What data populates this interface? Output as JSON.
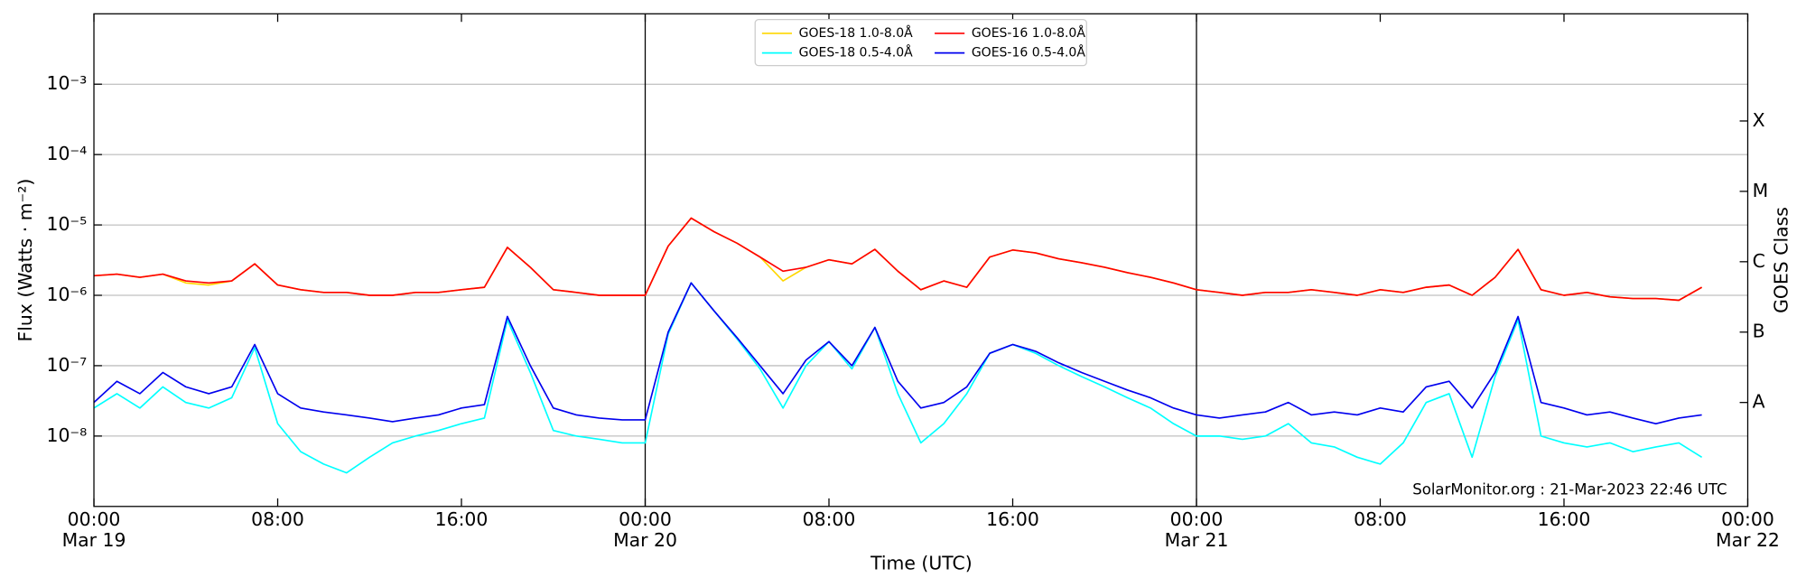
{
  "chart_data": {
    "type": "line",
    "xlabel": "Time (UTC)",
    "ylabel": "Flux (Watts · m⁻²)",
    "y2label": "GOES Class",
    "annotation": "SolarMonitor.org : 21-Mar-2023 22:46 UTC",
    "log_y": true,
    "grid": true,
    "legend": "upper center",
    "vlines": [
      24,
      48
    ],
    "xlim": [
      0,
      72
    ],
    "ylim": [
      1e-09,
      0.01
    ],
    "xticks": [
      {
        "value": 0,
        "label": "00:00\nMar 19"
      },
      {
        "value": 8,
        "label": "08:00"
      },
      {
        "value": 16,
        "label": "16:00"
      },
      {
        "value": 24,
        "label": "00:00\nMar 20"
      },
      {
        "value": 32,
        "label": "08:00"
      },
      {
        "value": 40,
        "label": "16:00"
      },
      {
        "value": 48,
        "label": "00:00\nMar 21"
      },
      {
        "value": 56,
        "label": "08:00"
      },
      {
        "value": 64,
        "label": "16:00"
      },
      {
        "value": 72,
        "label": "00:00\nMar 22"
      }
    ],
    "yticks": [
      {
        "value": 1e-08,
        "label": "10⁻⁸"
      },
      {
        "value": 1e-07,
        "label": "10⁻⁷"
      },
      {
        "value": 1e-06,
        "label": "10⁻⁶"
      },
      {
        "value": 1e-05,
        "label": "10⁻⁵"
      },
      {
        "value": 0.0001,
        "label": "10⁻⁴"
      },
      {
        "value": 0.001,
        "label": "10⁻³"
      }
    ],
    "y2lim": [
      1e-09,
      0.01
    ],
    "y2ticks": [
      {
        "value": 3e-08,
        "label": "A"
      },
      {
        "value": 3e-07,
        "label": "B"
      },
      {
        "value": 3e-06,
        "label": "C"
      },
      {
        "value": 3e-05,
        "label": "M"
      },
      {
        "value": 0.0003,
        "label": "X"
      }
    ],
    "x": [
      0,
      1,
      2,
      3,
      4,
      5,
      6,
      7,
      8,
      9,
      10,
      11,
      12,
      13,
      14,
      15,
      16,
      17,
      18,
      19,
      20,
      21,
      22,
      23,
      24,
      25,
      26,
      27,
      28,
      29,
      30,
      31,
      32,
      33,
      34,
      35,
      36,
      37,
      38,
      39,
      40,
      41,
      42,
      43,
      44,
      45,
      46,
      47,
      48,
      49,
      50,
      51,
      52,
      53,
      54,
      55,
      56,
      57,
      58,
      59,
      60,
      61,
      62,
      63,
      64,
      65,
      66,
      67,
      68,
      69,
      70
    ],
    "series": [
      {
        "name": "GOES-18 1.0-8.0Å",
        "color": "#ffd700",
        "values": [
          1.9e-06,
          2e-06,
          1.8e-06,
          2e-06,
          1.5e-06,
          1.4e-06,
          1.6e-06,
          2.8e-06,
          1.4e-06,
          1.2e-06,
          1.1e-06,
          1.1e-06,
          1e-06,
          1e-06,
          1.1e-06,
          1.1e-06,
          1.2e-06,
          1.3e-06,
          4.8e-06,
          2.5e-06,
          1.2e-06,
          1.1e-06,
          1e-06,
          1e-06,
          1e-06,
          5e-06,
          1.25e-05,
          8e-06,
          5.5e-06,
          3.5e-06,
          1.6e-06,
          2.5e-06,
          3.2e-06,
          2.8e-06,
          4.5e-06,
          2.2e-06,
          1.2e-06,
          1.6e-06,
          1.3e-06,
          3.5e-06,
          4.4e-06,
          4e-06,
          3.3e-06,
          2.9e-06,
          2.5e-06,
          2.1e-06,
          1.8e-06,
          1.5e-06,
          1.2e-06,
          1.1e-06,
          1e-06,
          1.1e-06,
          1.1e-06,
          1.2e-06,
          1.1e-06,
          1e-06,
          1.2e-06,
          1.1e-06,
          1.3e-06,
          1.4e-06,
          1e-06,
          1.8e-06,
          4.5e-06,
          1.2e-06,
          1e-06,
          1.1e-06,
          9.5e-07,
          9e-07,
          9e-07,
          8.5e-07,
          1.3e-06
        ]
      },
      {
        "name": "GOES-18 0.5-4.0Å",
        "color": "#00ffff",
        "values": [
          2.5e-08,
          4e-08,
          2.5e-08,
          5e-08,
          3e-08,
          2.5e-08,
          3.5e-08,
          1.8e-07,
          1.5e-08,
          6e-09,
          4e-09,
          3e-09,
          5e-09,
          8e-09,
          1e-08,
          1.2e-08,
          1.5e-08,
          1.8e-08,
          4.5e-07,
          8e-08,
          1.2e-08,
          1e-08,
          9e-09,
          8e-09,
          8e-09,
          2.8e-07,
          1.5e-06,
          6e-07,
          2.4e-07,
          9e-08,
          2.5e-08,
          1e-07,
          2.2e-07,
          9e-08,
          3.5e-07,
          4e-08,
          8e-09,
          1.5e-08,
          4e-08,
          1.5e-07,
          2e-07,
          1.5e-07,
          1e-07,
          7e-08,
          5e-08,
          3.5e-08,
          2.5e-08,
          1.5e-08,
          1e-08,
          1e-08,
          9e-09,
          1e-08,
          1.5e-08,
          8e-09,
          7e-09,
          5e-09,
          4e-09,
          8e-09,
          3e-08,
          4e-08,
          5e-09,
          7e-08,
          4.5e-07,
          1e-08,
          8e-09,
          7e-09,
          8e-09,
          6e-09,
          7e-09,
          8e-09,
          5e-09
        ]
      },
      {
        "name": "GOES-16 1.0-8.0Å",
        "color": "#ff0000",
        "values": [
          1.9e-06,
          2e-06,
          1.8e-06,
          2e-06,
          1.6e-06,
          1.5e-06,
          1.6e-06,
          2.8e-06,
          1.4e-06,
          1.2e-06,
          1.1e-06,
          1.1e-06,
          1e-06,
          1e-06,
          1.1e-06,
          1.1e-06,
          1.2e-06,
          1.3e-06,
          4.8e-06,
          2.5e-06,
          1.2e-06,
          1.1e-06,
          1e-06,
          1e-06,
          1e-06,
          5e-06,
          1.25e-05,
          8e-06,
          5.5e-06,
          3.5e-06,
          2.2e-06,
          2.5e-06,
          3.2e-06,
          2.8e-06,
          4.5e-06,
          2.2e-06,
          1.2e-06,
          1.6e-06,
          1.3e-06,
          3.5e-06,
          4.4e-06,
          4e-06,
          3.3e-06,
          2.9e-06,
          2.5e-06,
          2.1e-06,
          1.8e-06,
          1.5e-06,
          1.2e-06,
          1.1e-06,
          1e-06,
          1.1e-06,
          1.1e-06,
          1.2e-06,
          1.1e-06,
          1e-06,
          1.2e-06,
          1.1e-06,
          1.3e-06,
          1.4e-06,
          1e-06,
          1.8e-06,
          4.5e-06,
          1.2e-06,
          1e-06,
          1.1e-06,
          9.5e-07,
          9e-07,
          9e-07,
          8.5e-07,
          1.3e-06
        ]
      },
      {
        "name": "GOES-16 0.5-4.0Å",
        "color": "#0000ee",
        "values": [
          3e-08,
          6e-08,
          4e-08,
          8e-08,
          5e-08,
          4e-08,
          5e-08,
          2e-07,
          4e-08,
          2.5e-08,
          2.2e-08,
          2e-08,
          1.8e-08,
          1.6e-08,
          1.8e-08,
          2e-08,
          2.5e-08,
          2.8e-08,
          5e-07,
          1e-07,
          2.5e-08,
          2e-08,
          1.8e-08,
          1.7e-08,
          1.7e-08,
          3e-07,
          1.5e-06,
          6e-07,
          2.5e-07,
          1e-07,
          4e-08,
          1.2e-07,
          2.2e-07,
          1e-07,
          3.5e-07,
          6e-08,
          2.5e-08,
          3e-08,
          5e-08,
          1.5e-07,
          2e-07,
          1.6e-07,
          1.1e-07,
          8e-08,
          6e-08,
          4.5e-08,
          3.5e-08,
          2.5e-08,
          2e-08,
          1.8e-08,
          2e-08,
          2.2e-08,
          3e-08,
          2e-08,
          2.2e-08,
          2e-08,
          2.5e-08,
          2.2e-08,
          5e-08,
          6e-08,
          2.5e-08,
          8e-08,
          5e-07,
          3e-08,
          2.5e-08,
          2e-08,
          2.2e-08,
          1.8e-08,
          1.5e-08,
          1.8e-08,
          2e-08
        ]
      }
    ]
  }
}
